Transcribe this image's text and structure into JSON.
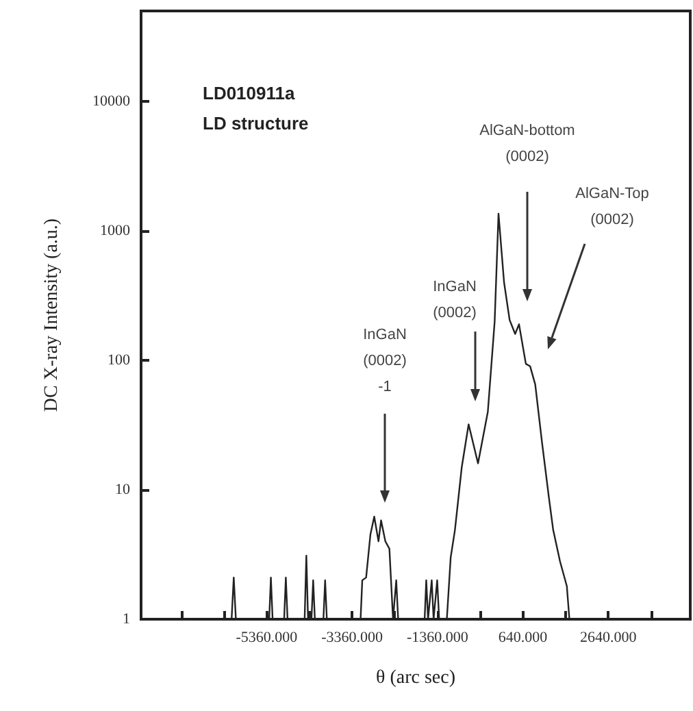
{
  "chart_data": {
    "type": "line",
    "title": "LD010911a\nLD structure",
    "xlabel": "θ (arc sec)",
    "ylabel": "DC X-ray Intensity (a.u.)",
    "log": "y",
    "grid": false,
    "marker": "none",
    "line_style": "solid",
    "xlim": [
      -8300,
      4560
    ],
    "ylim": [
      1,
      50000
    ],
    "xticks": [
      {
        "value": -7360,
        "label": null
      },
      {
        "value": -6360,
        "label": null
      },
      {
        "value": -5360,
        "label": "-5360.000"
      },
      {
        "value": -4360,
        "label": null
      },
      {
        "value": -3360,
        "label": "-3360.000"
      },
      {
        "value": -2360,
        "label": null
      },
      {
        "value": -1360,
        "label": "-1360.000"
      },
      {
        "value": -360,
        "label": null
      },
      {
        "value": 640,
        "label": "640.000"
      },
      {
        "value": 1640,
        "label": null
      },
      {
        "value": 2640,
        "label": "2640.000"
      },
      {
        "value": 3640,
        "label": null
      }
    ],
    "yticks": [
      1,
      10,
      100,
      1000,
      10000
    ],
    "series": [
      {
        "color": "#222222",
        "x": [
          -8300,
          -6180,
          -6130,
          -6080,
          -5300,
          -5260,
          -5220,
          -4950,
          -4910,
          -4870,
          -4470,
          -4430,
          -4390,
          -4310,
          -4270,
          -4230,
          -4030,
          -3990,
          -3950,
          -3160,
          -3120,
          -3030,
          -2930,
          -2840,
          -2740,
          -2680,
          -2580,
          -2485,
          -2400,
          -2325,
          -2280,
          -1660,
          -1622,
          -1580,
          -1494,
          -1450,
          -1366,
          -1320,
          -1140,
          -1050,
          -950,
          -790,
          -630,
          -410,
          -180,
          -20,
          70,
          200,
          330,
          460,
          550,
          710,
          810,
          930,
          1090,
          1250,
          1350,
          1510,
          1670,
          1730,
          4560
        ],
        "values": [
          1,
          1,
          2.1,
          1,
          1,
          2.1,
          1,
          1,
          2.1,
          1,
          1,
          3.1,
          1,
          1,
          2,
          1,
          1,
          2,
          1,
          1,
          2,
          2.1,
          4.5,
          6.2,
          4,
          5.8,
          4,
          3.5,
          1,
          2,
          1,
          1,
          2,
          1,
          2,
          1,
          2,
          1,
          1,
          3,
          4.9,
          15,
          32,
          16,
          40,
          200,
          1360,
          400,
          205,
          160,
          190,
          94,
          90,
          65,
          23,
          8.7,
          4.9,
          2.8,
          1.8,
          1,
          1
        ]
      }
    ],
    "annotations": [
      "InGaN\n(0002)\n-1",
      "InGaN\n(0002)",
      "AlGaN-bottom\n(0002)",
      "AlGaN-Top\n(0002)"
    ]
  }
}
